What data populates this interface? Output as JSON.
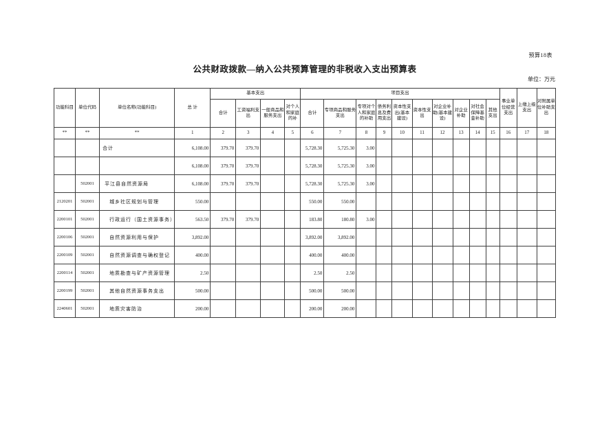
{
  "page": {
    "doc_label": "预算18表",
    "title": "公共财政拨款—纳入公共预算管理的非税收入支出预算表",
    "unit_note": "单位：万元"
  },
  "table": {
    "header": {
      "func_subject": "功能科目",
      "unit_code": "单位代码",
      "unit_name": "单位名称(功能科目)",
      "grand_total": "总  计",
      "basic_group": "基本支出",
      "project_group": "项目支出",
      "basic_cols": [
        "合计",
        "工资福利支出",
        "一般商品和服务支出",
        "对个人和家庭的补"
      ],
      "project_cols": [
        "合计",
        "专项商品和服务支出",
        "专项对个人和家庭的补助",
        "债务利息及费用支出",
        "资本性支出(基本建设)",
        "资本性支出",
        "对企业补助(基本建设)",
        "对企业补助",
        "对社会保障基金补助",
        "其他支出"
      ],
      "tail_cols": [
        "事业单位经营支出",
        "上缴上级支出",
        "对附属单位补助支出"
      ],
      "index_row": [
        "**",
        "**",
        "**",
        "1",
        "2",
        "3",
        "4",
        "5",
        "6",
        "7",
        "8",
        "9",
        "10",
        "11",
        "12",
        "13",
        "14",
        "15",
        "16",
        "17",
        "18"
      ]
    },
    "rows": [
      {
        "indent": 4,
        "cells": [
          "",
          "",
          "合计",
          "6,108.00",
          "379.70",
          "379.70",
          "",
          "",
          "5,728.30",
          "5,725.30",
          "3.00",
          "",
          "",
          "",
          "",
          "",
          "",
          "",
          "",
          "",
          ""
        ]
      },
      {
        "indent": 4,
        "cells": [
          "",
          "",
          "",
          "6,108.00",
          "379.70",
          "379.70",
          "",
          "",
          "5,728.30",
          "5,725.30",
          "3.00",
          "",
          "",
          "",
          "",
          "",
          "",
          "",
          "",
          "",
          ""
        ]
      },
      {
        "indent": 7,
        "cells": [
          "",
          "502001",
          "平江县自然资源局",
          "6,108.00",
          "379.70",
          "379.70",
          "",
          "",
          "5,728.30",
          "5,725.30",
          "3.00",
          "",
          "",
          "",
          "",
          "",
          "",
          "",
          "",
          "",
          ""
        ]
      },
      {
        "indent": 14,
        "cells": [
          "2120201",
          "502001",
          "城乡社区规划与管理",
          "550.00",
          "",
          "",
          "",
          "",
          "550.00",
          "550.00",
          "",
          "",
          "",
          "",
          "",
          "",
          "",
          "",
          "",
          "",
          ""
        ]
      },
      {
        "indent": 14,
        "cells": [
          "2200101",
          "502001",
          "行政运行（国土资源事务）",
          "563.50",
          "379.70",
          "379.70",
          "",
          "",
          "183.80",
          "180.80",
          "3.00",
          "",
          "",
          "",
          "",
          "",
          "",
          "",
          "",
          "",
          ""
        ]
      },
      {
        "indent": 14,
        "cells": [
          "2200106",
          "502001",
          "自然资源利用与保护",
          "3,892.00",
          "",
          "",
          "",
          "",
          "3,892.00",
          "3,892.00",
          "",
          "",
          "",
          "",
          "",
          "",
          "",
          "",
          "",
          "",
          ""
        ]
      },
      {
        "indent": 14,
        "cells": [
          "2200109",
          "502001",
          "自然资源调查与确权登记",
          "400.00",
          "",
          "",
          "",
          "",
          "400.00",
          "400.00",
          "",
          "",
          "",
          "",
          "",
          "",
          "",
          "",
          "",
          "",
          ""
        ]
      },
      {
        "indent": 14,
        "cells": [
          "2200114",
          "502001",
          "地质勘查与矿产资源管理",
          "2.50",
          "",
          "",
          "",
          "",
          "2.50",
          "2.50",
          "",
          "",
          "",
          "",
          "",
          "",
          "",
          "",
          "",
          "",
          ""
        ]
      },
      {
        "indent": 14,
        "cells": [
          "2200199",
          "502001",
          "其他自然资源事务支出",
          "500.00",
          "",
          "",
          "",
          "",
          "500.00",
          "500.00",
          "",
          "",
          "",
          "",
          "",
          "",
          "",
          "",
          "",
          "",
          ""
        ]
      },
      {
        "indent": 14,
        "cells": [
          "2240601",
          "502001",
          "地质灾害防治",
          "200.00",
          "",
          "",
          "",
          "",
          "200.00",
          "200.00",
          "",
          "",
          "",
          "",
          "",
          "",
          "",
          "",
          "",
          "",
          ""
        ]
      }
    ]
  }
}
